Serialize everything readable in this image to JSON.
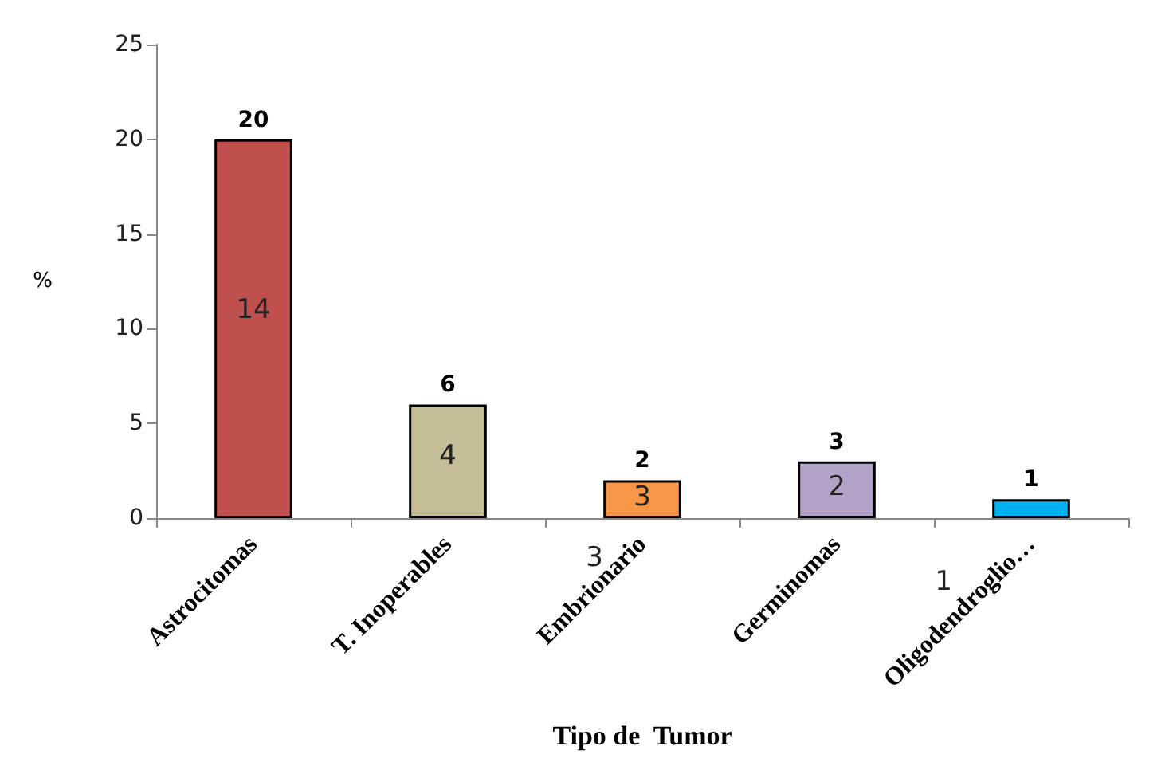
{
  "chart_data": {
    "type": "bar",
    "xlabel": "Tipo de  Tumor",
    "ylabel": "%",
    "categories": [
      "Astrocitomas",
      "T. Inoperables",
      "Embrionario",
      "Germinomas",
      "Oligodendroglio…"
    ],
    "values": [
      20,
      6,
      2,
      3,
      1
    ],
    "colors": [
      "#c0504d",
      "#c4bd97",
      "#f79646",
      "#b3a2c7",
      "#00b0f0"
    ],
    "ylim": [
      0,
      25
    ],
    "yticks": [
      0,
      5,
      10,
      15,
      20,
      25
    ],
    "grid": false,
    "data_labels": true,
    "annotations": [
      "14",
      "4",
      "3",
      "2",
      "3",
      "1"
    ]
  }
}
